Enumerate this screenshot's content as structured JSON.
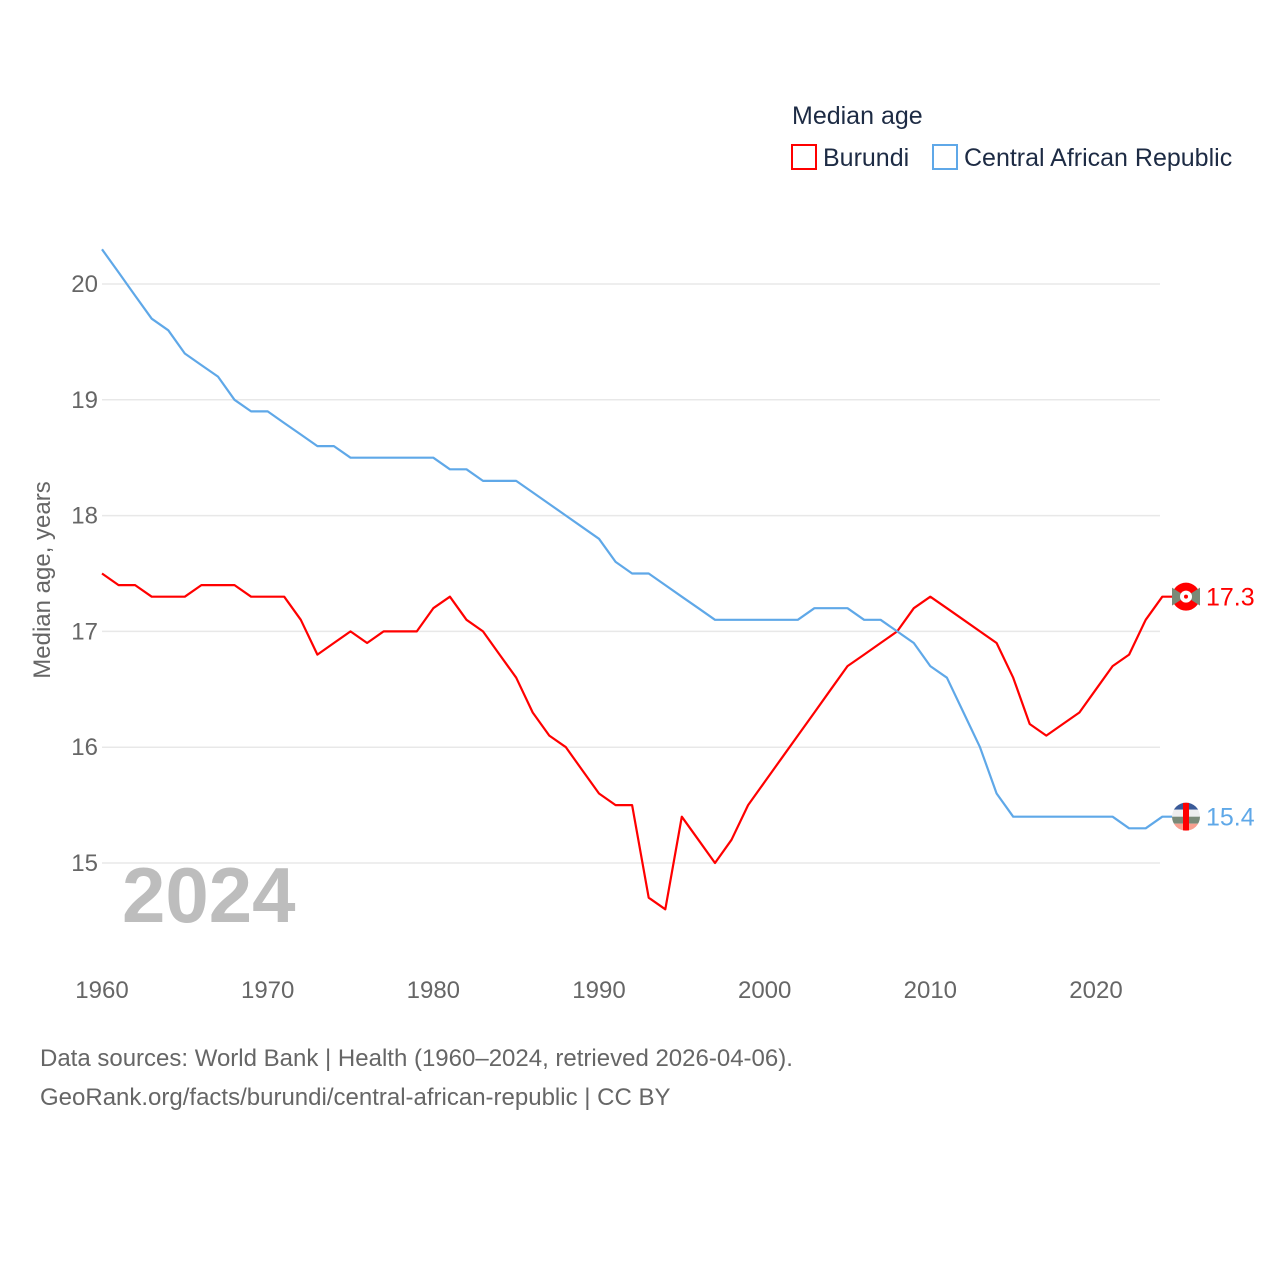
{
  "chart_data": {
    "type": "line",
    "title": "Median age",
    "xlabel": "",
    "ylabel": "Median age, years",
    "xlim": [
      1960,
      2024
    ],
    "ylim": [
      14.6,
      20.3
    ],
    "x_ticks": [
      "1960",
      "1970",
      "1980",
      "1990",
      "2000",
      "2010",
      "2020"
    ],
    "y_ticks": [
      "15",
      "16",
      "17",
      "18",
      "19",
      "20"
    ],
    "grid": true,
    "legend_position": "top-right",
    "year_label": "2024",
    "x": [
      1960,
      1961,
      1962,
      1963,
      1964,
      1965,
      1966,
      1967,
      1968,
      1969,
      1970,
      1971,
      1972,
      1973,
      1974,
      1975,
      1976,
      1977,
      1978,
      1979,
      1980,
      1981,
      1982,
      1983,
      1984,
      1985,
      1986,
      1987,
      1988,
      1989,
      1990,
      1991,
      1992,
      1993,
      1994,
      1995,
      1996,
      1997,
      1998,
      1999,
      2000,
      2001,
      2002,
      2003,
      2004,
      2005,
      2006,
      2007,
      2008,
      2009,
      2010,
      2011,
      2012,
      2013,
      2014,
      2015,
      2016,
      2017,
      2018,
      2019,
      2020,
      2021,
      2022,
      2023,
      2024
    ],
    "series": [
      {
        "name": "Burundi",
        "color": "#ff0000",
        "end_label": "17.3",
        "values": [
          17.5,
          17.4,
          17.4,
          17.3,
          17.3,
          17.3,
          17.4,
          17.4,
          17.4,
          17.3,
          17.3,
          17.3,
          17.1,
          16.8,
          16.9,
          17.0,
          16.9,
          17.0,
          17.0,
          17.0,
          17.2,
          17.3,
          17.1,
          17.0,
          16.8,
          16.6,
          16.3,
          16.1,
          16.0,
          15.8,
          15.6,
          15.5,
          15.5,
          14.7,
          14.6,
          15.4,
          15.2,
          15.0,
          15.2,
          15.5,
          15.7,
          15.9,
          16.1,
          16.3,
          16.5,
          16.7,
          16.8,
          16.9,
          17.0,
          17.2,
          17.3,
          17.2,
          17.1,
          17.0,
          16.9,
          16.6,
          16.2,
          16.1,
          16.2,
          16.3,
          16.5,
          16.7,
          16.8,
          17.1,
          17.3
        ]
      },
      {
        "name": "Central African Republic",
        "color": "#5fa8e8",
        "end_label": "15.4",
        "values": [
          20.3,
          20.1,
          19.9,
          19.7,
          19.6,
          19.4,
          19.3,
          19.2,
          19.0,
          18.9,
          18.9,
          18.8,
          18.7,
          18.6,
          18.6,
          18.5,
          18.5,
          18.5,
          18.5,
          18.5,
          18.5,
          18.4,
          18.4,
          18.3,
          18.3,
          18.3,
          18.2,
          18.1,
          18.0,
          17.9,
          17.8,
          17.6,
          17.5,
          17.5,
          17.4,
          17.3,
          17.2,
          17.1,
          17.1,
          17.1,
          17.1,
          17.1,
          17.1,
          17.2,
          17.2,
          17.2,
          17.1,
          17.1,
          17.0,
          16.9,
          16.7,
          16.6,
          16.3,
          16.0,
          15.6,
          15.4,
          15.4,
          15.4,
          15.4,
          15.4,
          15.4,
          15.4,
          15.3,
          15.3,
          15.4
        ]
      }
    ]
  },
  "footer": {
    "line1": "Data sources: World Bank | Health (1960–2024, retrieved 2026-04-06).",
    "line2": "GeoRank.org/facts/burundi/central-african-republic | CC BY"
  }
}
